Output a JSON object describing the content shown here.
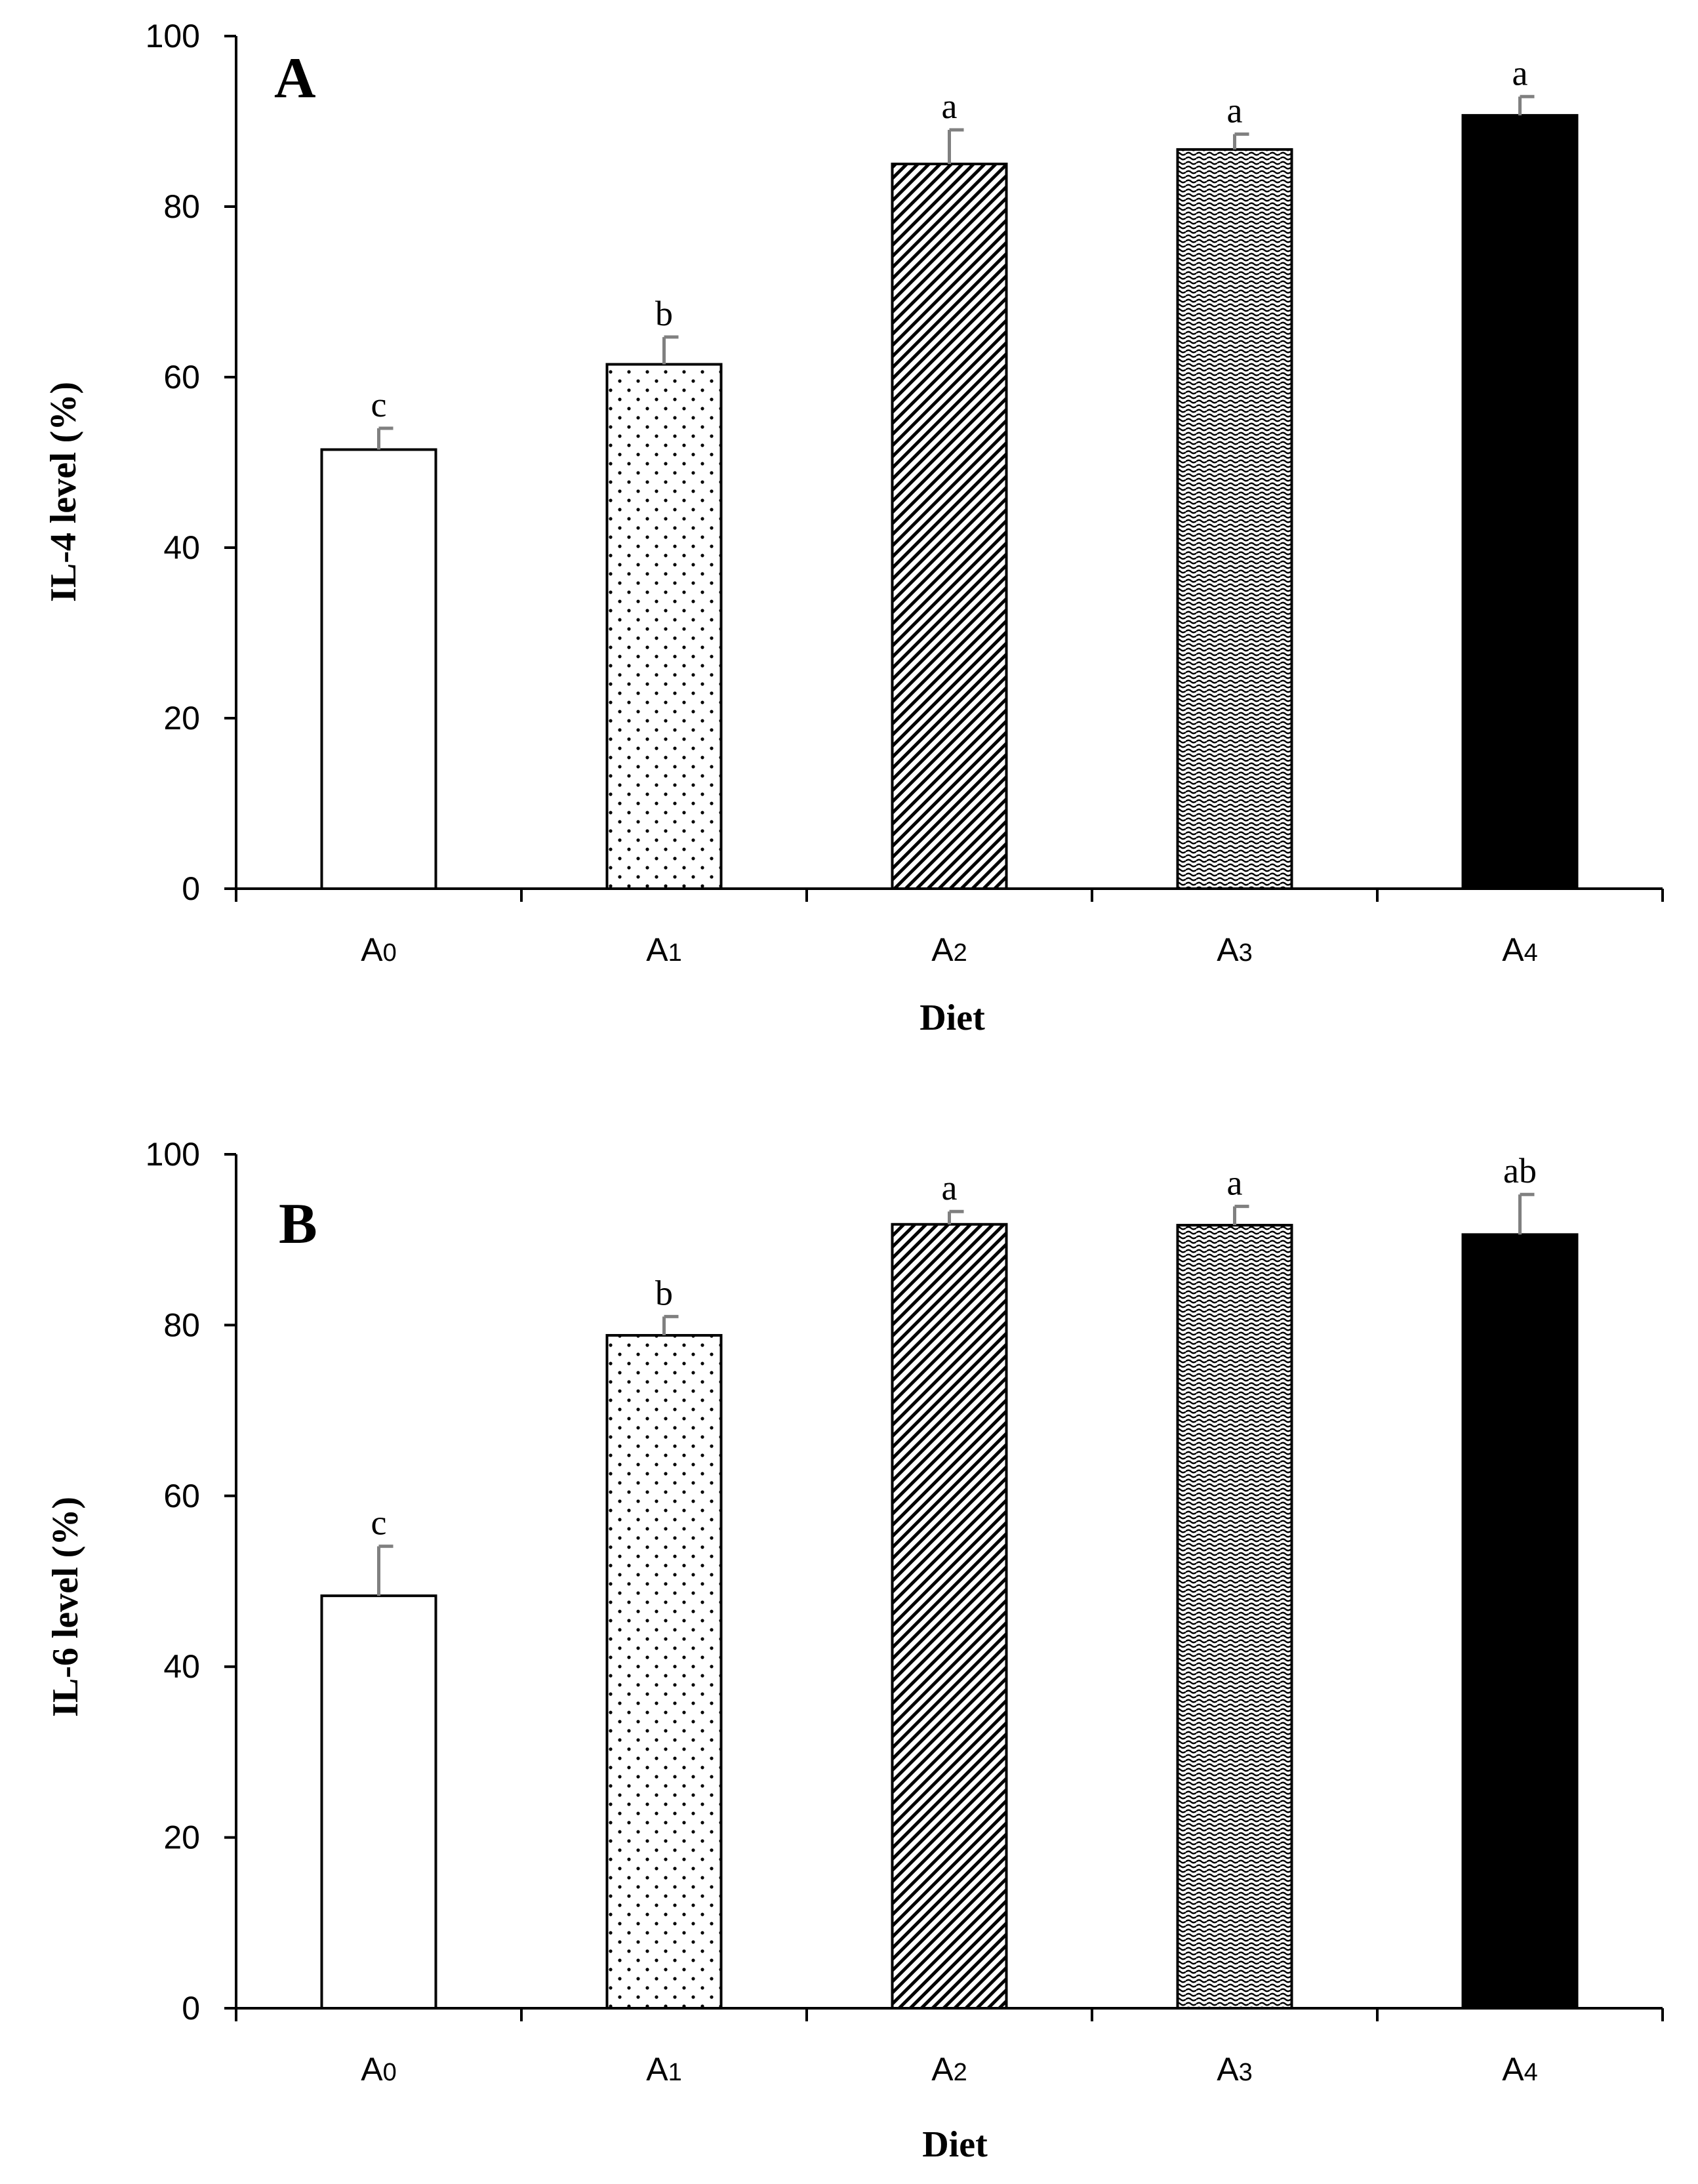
{
  "chart_data": [
    {
      "type": "bar",
      "panel": "A",
      "categories": [
        {
          "base": "A",
          "sub": "0"
        },
        {
          "base": "A",
          "sub": "1"
        },
        {
          "base": "A",
          "sub": "2"
        },
        {
          "base": "A",
          "sub": "3"
        },
        {
          "base": "A",
          "sub": "4"
        }
      ],
      "values": [
        51.5,
        61.5,
        85,
        86.7,
        90.7
      ],
      "errors": [
        2.5,
        3.2,
        4,
        1.8,
        2.2
      ],
      "significance": [
        "c",
        "b",
        "a",
        "a",
        "a"
      ],
      "patterns": [
        "none",
        "dots",
        "diagonal",
        "wave",
        "solid"
      ],
      "xlabel": "Diet",
      "ylabel": "IL-4 level (%)",
      "ylim": [
        0,
        100
      ],
      "yticks": [
        "0",
        "20",
        "40",
        "60",
        "80",
        "100"
      ],
      "grid": false
    },
    {
      "type": "bar",
      "panel": "B",
      "categories": [
        {
          "base": "A",
          "sub": "0"
        },
        {
          "base": "A",
          "sub": "1"
        },
        {
          "base": "A",
          "sub": "2"
        },
        {
          "base": "A",
          "sub": "3"
        },
        {
          "base": "A",
          "sub": "4"
        }
      ],
      "values": [
        48.3,
        78.8,
        91.8,
        91.7,
        90.6
      ],
      "errors": [
        5.8,
        2.2,
        1.5,
        2.2,
        4.7
      ],
      "significance": [
        "c",
        "b",
        "a",
        "a",
        "ab"
      ],
      "patterns": [
        "none",
        "dots",
        "diagonal",
        "wave",
        "solid"
      ],
      "xlabel": "Diet",
      "ylabel": "IL-6 level (%)",
      "ylim": [
        0,
        100
      ],
      "yticks": [
        "0",
        "20",
        "40",
        "60",
        "80",
        "100"
      ],
      "grid": false
    }
  ],
  "colors": {
    "axis": "#000000",
    "bar_outline": "#000000",
    "error_bar": "#808080",
    "solid_fill": "#000000",
    "pattern_ink": "#000000",
    "background": "#ffffff"
  }
}
